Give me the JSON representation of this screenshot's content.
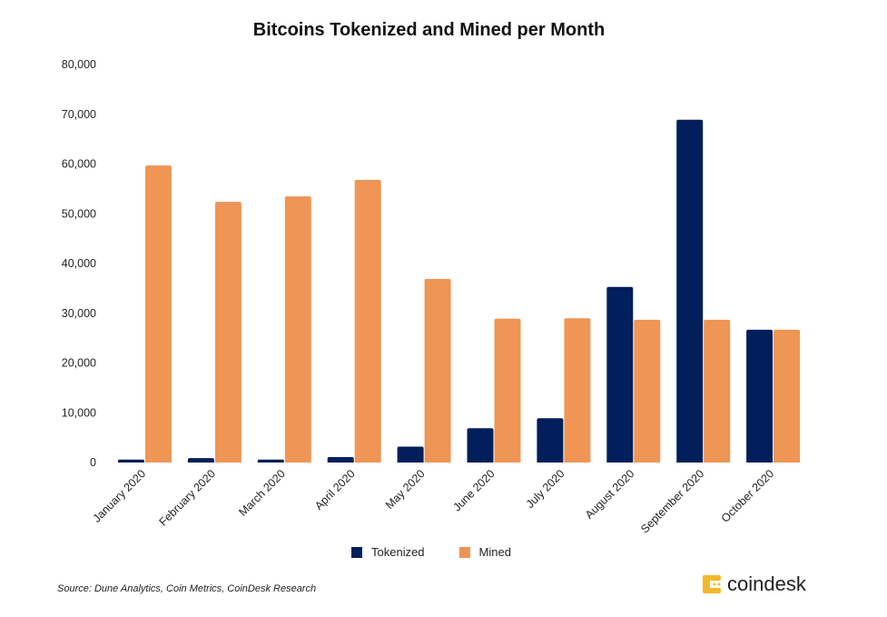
{
  "chart_data": {
    "type": "bar",
    "title": "Bitcoins Tokenized and Mined per Month",
    "categories": [
      "January 2020",
      "February 2020",
      "March 2020",
      "April 2020",
      "May 2020",
      "June 2020",
      "July 2020",
      "August 2020",
      "September 2020",
      "October 2020"
    ],
    "series": [
      {
        "name": "Tokenized",
        "color": "#001f5b",
        "values": [
          600,
          900,
          600,
          1100,
          3200,
          6900,
          8900,
          35300,
          68900,
          26700
        ]
      },
      {
        "name": "Mined",
        "color": "#ef9555",
        "values": [
          59700,
          52400,
          53500,
          56800,
          36900,
          28900,
          29000,
          28700,
          28700,
          26700
        ]
      }
    ],
    "ylim": [
      0,
      80000
    ],
    "yticks": [
      "0",
      "10,000",
      "20,000",
      "30,000",
      "40,000",
      "50,000",
      "60,000",
      "70,000",
      "80,000"
    ],
    "grid": false,
    "legend": "bottom",
    "xlabel": "",
    "ylabel": ""
  },
  "source": "Source: Dune Analytics, Coin Metrics, CoinDesk Research",
  "logo": {
    "text": "coindesk",
    "color": "#f5b72b"
  }
}
